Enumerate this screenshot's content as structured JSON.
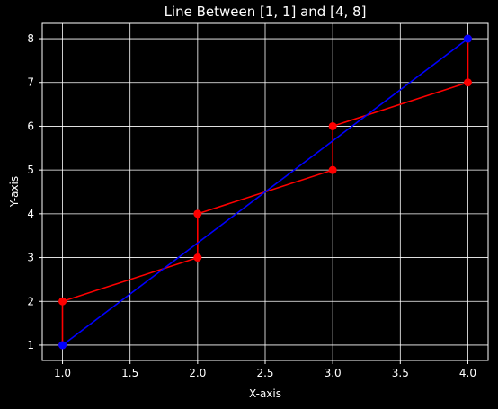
{
  "chart_data": {
    "type": "line",
    "title": "Line Between [1, 1] and [4, 8]",
    "xlabel": "X-axis",
    "ylabel": "Y-axis",
    "xlim": [
      0.85,
      4.15
    ],
    "ylim": [
      0.65,
      8.35
    ],
    "xticks": [
      "1.0",
      "1.5",
      "2.0",
      "2.5",
      "3.0",
      "3.5",
      "4.0"
    ],
    "yticks": [
      "1",
      "2",
      "3",
      "4",
      "5",
      "6",
      "7",
      "8"
    ],
    "grid": true,
    "background": "#000000",
    "series": [
      {
        "color": "#ff0000",
        "marker": "circle",
        "points": [
          [
            1,
            1
          ],
          [
            1,
            2
          ],
          [
            2,
            3
          ],
          [
            2,
            4
          ],
          [
            3,
            5
          ],
          [
            3,
            6
          ],
          [
            4,
            7
          ],
          [
            4,
            8
          ]
        ]
      },
      {
        "color": "#0000ff",
        "marker": "circle",
        "points": [
          [
            1,
            1
          ],
          [
            4,
            8
          ]
        ]
      }
    ]
  }
}
